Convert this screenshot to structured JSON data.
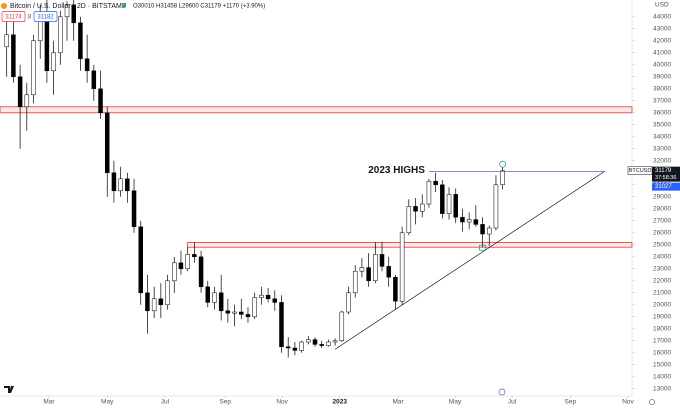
{
  "chart_data": {
    "type": "candlestick",
    "title": "Bitcoin / U.S. Dollar · 2D · BITSTAMP",
    "ohlc_legend": "O30010 H31458 L29600 C31179 +1170 (+3.90%)",
    "sell_price": 31174,
    "spread": 8,
    "buy_price": 31182,
    "y_unit": "USD",
    "symbol": "BTCUSD",
    "last_price": 31179,
    "countdown": "37:58:36",
    "prev_price": 31027,
    "up_color": "#ffffff",
    "down_color": "#000000",
    "outline_color": "#000000",
    "grid": false,
    "xlim": [
      0,
      94.3
    ],
    "xticks": [
      {
        "value": 7.3,
        "label": "Mar"
      },
      {
        "value": 16.0,
        "label": "May"
      },
      {
        "value": 24.6,
        "label": "Jul"
      },
      {
        "value": 33.6,
        "label": "Sep"
      },
      {
        "value": 42.1,
        "label": "Nov"
      },
      {
        "value": 50.7,
        "label": "2023"
      },
      {
        "value": 59.4,
        "label": "Mar"
      },
      {
        "value": 67.9,
        "label": "May"
      },
      {
        "value": 76.4,
        "label": "Jul"
      },
      {
        "value": 85.1,
        "label": "Sep"
      },
      {
        "value": 93.7,
        "label": "Nov"
      }
    ],
    "ylim": [
      12400,
      45400
    ],
    "yticks": [
      13000,
      14000,
      15000,
      16000,
      17000,
      18000,
      19000,
      20000,
      21000,
      22000,
      23000,
      24000,
      25000,
      26000,
      27000,
      28000,
      29000,
      30000,
      31000,
      32000,
      33000,
      34000,
      35000,
      36000,
      37000,
      38000,
      39000,
      40000,
      41000,
      42000,
      43000,
      44000
    ],
    "x": [
      1,
      2,
      3,
      4,
      5,
      6,
      7,
      8,
      9,
      10,
      11,
      12,
      13,
      14,
      15,
      16,
      17,
      18,
      19,
      20,
      21,
      22,
      23,
      24,
      25,
      26,
      27,
      28,
      29,
      30,
      31,
      32,
      33,
      34,
      35,
      36,
      37,
      38,
      39,
      40,
      41,
      42,
      43,
      44,
      45,
      46,
      47,
      48,
      49,
      50,
      51,
      52,
      53,
      54,
      55,
      56,
      57,
      58,
      59,
      60,
      61,
      62,
      63,
      64,
      65,
      66,
      67,
      68,
      69,
      70,
      71,
      72,
      73,
      74,
      75
    ],
    "open": [
      41500,
      42500,
      39000,
      36500,
      37500,
      42000,
      43800,
      39500,
      41000,
      44000,
      45000,
      43500,
      40500,
      39500,
      38000,
      36000,
      31000,
      29500,
      30500,
      29500,
      26500,
      21000,
      19500,
      20500,
      20000,
      22000,
      23500,
      23000,
      24200,
      24000,
      21500,
      20200,
      21000,
      19500,
      19300,
      19400,
      19200,
      19000,
      20600,
      20800,
      20500,
      20200,
      16500,
      16400,
      16200,
      16900,
      17100,
      16700,
      16600,
      16900,
      17000,
      19400,
      21000,
      22800,
      23100,
      22000,
      24200,
      23200,
      22300,
      20300,
      26000,
      28200,
      27800,
      28400,
      30300,
      30000,
      27600,
      29200,
      27300,
      26900,
      27100,
      26700,
      25900,
      26400,
      30010
    ],
    "high": [
      44200,
      43800,
      40000,
      38500,
      42500,
      45000,
      45500,
      42000,
      44500,
      45300,
      45500,
      44000,
      42500,
      40000,
      39500,
      36500,
      32000,
      31500,
      31000,
      30500,
      27000,
      22500,
      21500,
      21800,
      22500,
      24000,
      24500,
      24800,
      25200,
      24500,
      22000,
      21500,
      22500,
      20500,
      20000,
      20500,
      19800,
      21000,
      21500,
      21400,
      21200,
      20800,
      17300,
      16900,
      17000,
      17400,
      17300,
      17000,
      17100,
      17200,
      19500,
      21500,
      23300,
      23900,
      24300,
      25200,
      25250,
      24000,
      22500,
      26500,
      28800,
      28900,
      29200,
      30500,
      31000,
      30400,
      29800,
      29700,
      28000,
      27700,
      28300,
      27300,
      26600,
      30800,
      31458
    ],
    "low": [
      39000,
      38500,
      33000,
      34500,
      36800,
      40500,
      38500,
      37500,
      40000,
      42000,
      42000,
      39500,
      38500,
      37000,
      35500,
      29000,
      28500,
      29000,
      28500,
      26000,
      20000,
      17600,
      18900,
      18900,
      19600,
      21000,
      22500,
      22800,
      23500,
      21000,
      19800,
      19600,
      18700,
      18500,
      18200,
      18800,
      18500,
      18800,
      20000,
      20200,
      19500,
      16000,
      15600,
      15800,
      16000,
      16700,
      16500,
      16400,
      16500,
      16600,
      16900,
      19200,
      20600,
      22300,
      21500,
      21800,
      22800,
      21500,
      19600,
      20000,
      25800,
      26700,
      27300,
      28100,
      29400,
      27200,
      27100,
      26800,
      26100,
      26300,
      26500,
      24800,
      24900,
      26200,
      29600
    ],
    "close": [
      42500,
      39000,
      36500,
      37500,
      42000,
      43800,
      39500,
      41000,
      44000,
      45000,
      43500,
      40500,
      39500,
      38000,
      36000,
      31000,
      29500,
      30500,
      29500,
      26500,
      21000,
      19500,
      20500,
      20000,
      22000,
      23500,
      23000,
      24200,
      24000,
      21500,
      20200,
      21000,
      19500,
      19300,
      19400,
      19200,
      19000,
      20600,
      20800,
      20500,
      20200,
      16500,
      16400,
      16200,
      16900,
      17100,
      16700,
      16600,
      16900,
      17000,
      19400,
      21000,
      22800,
      23100,
      22000,
      24200,
      23200,
      22300,
      20300,
      26000,
      28200,
      27800,
      28400,
      30300,
      30000,
      27600,
      29200,
      27300,
      26900,
      27100,
      26700,
      25900,
      26400,
      30000,
      31179
    ],
    "zones": [
      {
        "x": [
          0,
          94.3
        ],
        "y": [
          36000,
          36500
        ],
        "color": "#e53935"
      },
      {
        "x": [
          28,
          94.3
        ],
        "y": [
          24800,
          25200
        ],
        "color": "#e53935"
      }
    ],
    "highs_line": {
      "label": "2023 HIGHS",
      "x": [
        64,
        90.3
      ],
      "y": 31100,
      "color": "#7e57c2"
    },
    "trendline": {
      "x": [
        50,
        90.3
      ],
      "y": [
        16300,
        31150
      ],
      "color": "#000000"
    }
  }
}
